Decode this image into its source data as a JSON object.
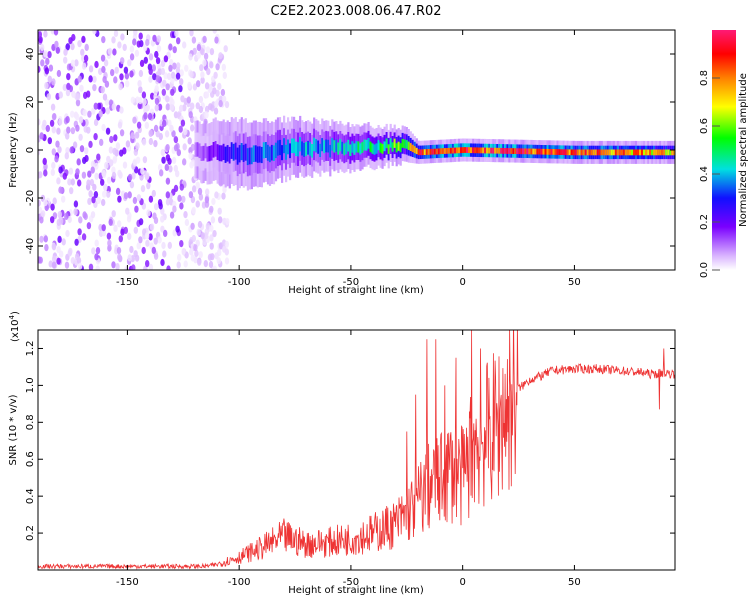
{
  "title": "C2E2.2023.008.06.47.R02",
  "chart_data": [
    {
      "type": "heatmap",
      "name": "spectrogram",
      "xlabel": "Height of straight line (km)",
      "ylabel": "Frequency (Hz)",
      "xlim": [
        -190,
        95
      ],
      "ylim": [
        -50,
        50
      ],
      "xticks": [
        -150,
        -100,
        -50,
        0,
        50
      ],
      "xtick_labels": [
        "-150",
        "-100",
        "-50",
        "0",
        "50"
      ],
      "yticks": [
        -40,
        -20,
        0,
        20,
        40
      ],
      "ytick_labels": [
        "-40",
        "-20",
        "0",
        "20",
        "40"
      ],
      "colorbar": {
        "label": "Normalized spectral amplitude",
        "range": [
          0,
          1
        ],
        "ticks": [
          0.0,
          0.2,
          0.4,
          0.6,
          0.8
        ],
        "tick_labels": [
          "0.0",
          "0.2",
          "0.4",
          "0.6",
          "0.8"
        ],
        "colors": [
          "#ffffff",
          "#d9b3ff",
          "#7a00ff",
          "#1010ff",
          "#00e0e0",
          "#00ff00",
          "#ffff00",
          "#ff8000",
          "#ff0000",
          "#ff1a75"
        ]
      },
      "noise_region_km": [
        -190,
        -115
      ],
      "band": [
        {
          "x": -120,
          "center_hz": 0,
          "halfwidth_hz": 5,
          "peak": 0.15
        },
        {
          "x": -100,
          "center_hz": -2,
          "halfwidth_hz": 6,
          "peak": 0.35
        },
        {
          "x": -75,
          "center_hz": 1,
          "halfwidth_hz": 5,
          "peak": 0.4
        },
        {
          "x": -50,
          "center_hz": 1,
          "halfwidth_hz": 4,
          "peak": 0.45
        },
        {
          "x": -25,
          "center_hz": 2,
          "halfwidth_hz": 3,
          "peak": 0.6
        },
        {
          "x": -20,
          "center_hz": -1,
          "halfwidth_hz": 2,
          "peak": 0.85
        },
        {
          "x": 0,
          "center_hz": 0,
          "halfwidth_hz": 2,
          "peak": 0.9
        },
        {
          "x": 50,
          "center_hz": -1,
          "halfwidth_hz": 2,
          "peak": 0.85
        },
        {
          "x": 95,
          "center_hz": -1,
          "halfwidth_hz": 2,
          "peak": 0.7
        }
      ]
    },
    {
      "type": "line",
      "name": "snr",
      "xlabel": "Height of straight line (km)",
      "ylabel": "SNR (10 * v/v)",
      "y_multiplier": "(x10",
      "y_multiplier_exp": "4",
      "y_multiplier_close": ")",
      "xlim": [
        -190,
        95
      ],
      "ylim": [
        0,
        1.3
      ],
      "xticks": [
        -150,
        -100,
        -50,
        0,
        50
      ],
      "xtick_labels": [
        "-150",
        "-100",
        "-50",
        "0",
        "50"
      ],
      "yticks": [
        0.2,
        0.4,
        0.6,
        0.8,
        1.0,
        1.2
      ],
      "ytick_labels": [
        "0.2",
        "0.4",
        "0.6",
        "0.8",
        "1.0",
        "1.2"
      ],
      "color": "#ee3333",
      "series": [
        {
          "name": "SNR",
          "x": [
            -190,
            -150,
            -115,
            -110,
            -100,
            -90,
            -80,
            -70,
            -60,
            -50,
            -40,
            -30,
            -25,
            -20,
            -15,
            -10,
            -5,
            0,
            5,
            10,
            15,
            20,
            25,
            30,
            35,
            40,
            50,
            60,
            70,
            80,
            85,
            90,
            95
          ],
          "y": [
            0.02,
            0.02,
            0.02,
            0.03,
            0.07,
            0.12,
            0.18,
            0.14,
            0.15,
            0.17,
            0.2,
            0.25,
            0.3,
            0.38,
            0.45,
            0.48,
            0.55,
            0.5,
            0.68,
            0.72,
            0.78,
            0.88,
            0.98,
            1.03,
            1.05,
            1.08,
            1.09,
            1.09,
            1.08,
            1.07,
            1.06,
            1.07,
            1.06
          ]
        }
      ],
      "spikes": [
        {
          "x": -25,
          "y": 0.75
        },
        {
          "x": -21,
          "y": 0.95
        },
        {
          "x": -16,
          "y": 1.25
        },
        {
          "x": -12,
          "y": 1.25
        },
        {
          "x": -8,
          "y": 1.0
        },
        {
          "x": -3,
          "y": 1.15
        },
        {
          "x": 4,
          "y": 1.3
        },
        {
          "x": 8,
          "y": 1.2
        },
        {
          "x": 88,
          "y": 0.87
        },
        {
          "x": 90,
          "y": 1.2
        }
      ]
    }
  ]
}
